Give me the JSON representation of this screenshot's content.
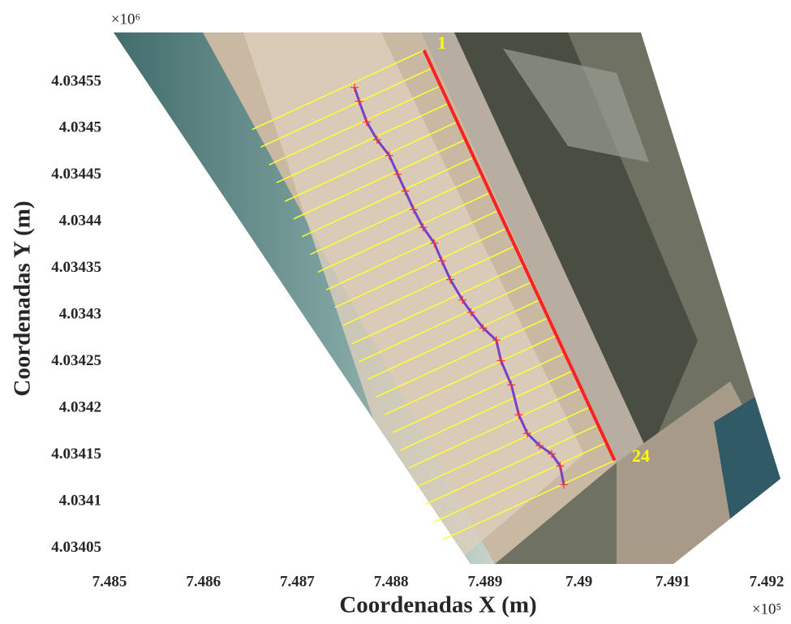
{
  "chart_data": {
    "type": "line",
    "xlabel": "Coordenadas X (m)",
    "ylabel": "Coordenadas Y (m)",
    "x_multiplier": "×10⁵",
    "y_multiplier": "×10⁶",
    "xlim": [
      748500,
      749200
    ],
    "ylim": [
      4034033,
      4034603
    ],
    "xticks": [
      {
        "value": 748500,
        "label": "7.485"
      },
      {
        "value": 748600,
        "label": "7.486"
      },
      {
        "value": 748700,
        "label": "7.487"
      },
      {
        "value": 748800,
        "label": "7.488"
      },
      {
        "value": 748900,
        "label": "7.489"
      },
      {
        "value": 749000,
        "label": "7.49"
      },
      {
        "value": 749100,
        "label": "7.491"
      },
      {
        "value": 749200,
        "label": "7.492"
      }
    ],
    "yticks": [
      {
        "value": 4034050,
        "label": "4.03405"
      },
      {
        "value": 4034100,
        "label": "4.0341"
      },
      {
        "value": 4034150,
        "label": "4.03415"
      },
      {
        "value": 4034200,
        "label": "4.0342"
      },
      {
        "value": 4034250,
        "label": "4.03425"
      },
      {
        "value": 4034300,
        "label": "4.0343"
      },
      {
        "value": 4034350,
        "label": "4.03435"
      },
      {
        "value": 4034400,
        "label": "4.0344"
      },
      {
        "value": 4034450,
        "label": "4.03445"
      },
      {
        "value": 4034500,
        "label": "4.0345"
      },
      {
        "value": 4034550,
        "label": "4.03455"
      }
    ],
    "transects": {
      "color": "#ffff33",
      "x0": [
        748835,
        748844,
        748853,
        748861,
        748870,
        748879,
        748888,
        748897,
        748905,
        748914,
        748923,
        748932,
        748941,
        748949,
        748958,
        748967,
        748976,
        748985,
        748993,
        749002,
        749011,
        749020,
        749029,
        749038
      ],
      "y0": [
        4034584,
        4034565,
        4034546,
        4034527,
        4034507,
        4034488,
        4034469,
        4034450,
        4034431,
        4034412,
        4034393,
        4034374,
        4034354,
        4034335,
        4034316,
        4034297,
        4034278,
        4034259,
        4034240,
        4034221,
        4034201,
        4034182,
        4034163,
        4034144
      ],
      "x1": [
        748652,
        748661,
        748670,
        748678,
        748687,
        748696,
        748705,
        748714,
        748722,
        748731,
        748740,
        748749,
        748758,
        748766,
        748775,
        748784,
        748793,
        748802,
        748810,
        748819,
        748828,
        748837,
        748846,
        748855
      ],
      "y1": [
        4034499,
        4034480,
        4034461,
        4034442,
        4034422,
        4034403,
        4034384,
        4034365,
        4034346,
        4034327,
        4034308,
        4034289,
        4034269,
        4034250,
        4034231,
        4034212,
        4034193,
        4034174,
        4034155,
        4034136,
        4034116,
        4034097,
        4034078,
        4034059
      ]
    },
    "baseline": {
      "color": "#ff2020",
      "x": [
        748835,
        749038
      ],
      "y": [
        4034584,
        4034144
      ]
    },
    "shoreline": {
      "color": "#7a3fc8",
      "x": [
        748761,
        748766,
        748774,
        748785,
        748798,
        748807,
        748815,
        748824,
        748834,
        748846,
        748854,
        748863,
        748876,
        748885,
        748898,
        748912,
        748917,
        748928,
        748936,
        748945,
        748958,
        748971,
        748980,
        748984
      ],
      "y": [
        4034544,
        4034529,
        4034507,
        4034488,
        4034471,
        4034451,
        4034433,
        4034413,
        4034394,
        4034377,
        4034358,
        4034338,
        4034316,
        4034303,
        4034286,
        4034273,
        4034251,
        4034225,
        4034193,
        4034173,
        4034160,
        4034151,
        4034138,
        4034118
      ]
    },
    "annotations": [
      {
        "text": "1",
        "x": 748854,
        "y": 4034590
      },
      {
        "text": "24",
        "x": 749066,
        "y": 4034147
      }
    ]
  }
}
